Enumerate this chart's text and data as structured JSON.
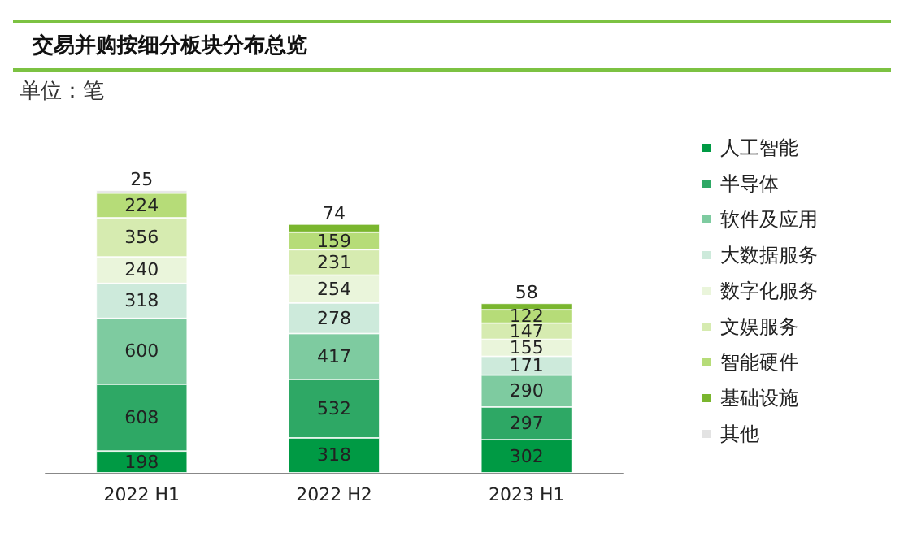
{
  "chart_data": {
    "type": "bar",
    "title": "交易并购按细分板块分布总览",
    "annotations": [
      "单位：笔"
    ],
    "categories": [
      "2022 H1",
      "2022 H2",
      "2023 H1"
    ],
    "stacked": true,
    "data_labels": true,
    "legend": "right",
    "series": [
      {
        "name": "人工智能",
        "color": "#009a44",
        "values": [
          198,
          318,
          302
        ]
      },
      {
        "name": "半导体",
        "color": "#2ea865",
        "values": [
          608,
          532,
          297
        ]
      },
      {
        "name": "软件及应用",
        "color": "#7ecba0",
        "values": [
          600,
          417,
          290
        ]
      },
      {
        "name": "大数据服务",
        "color": "#cdeadb",
        "values": [
          318,
          278,
          171
        ]
      },
      {
        "name": "数字化服务",
        "color": "#eaf5db",
        "values": [
          240,
          254,
          155
        ]
      },
      {
        "name": "文娱服务",
        "color": "#d6ebb0",
        "values": [
          356,
          231,
          147
        ]
      },
      {
        "name": "智能硬件",
        "color": "#b6dc78",
        "values": [
          224,
          159,
          122
        ]
      },
      {
        "name": "基础设施",
        "color": "#7ab62e",
        "values": [
          null,
          74,
          58
        ]
      },
      {
        "name": "其他",
        "color": "#e3e3e3",
        "values": [
          25,
          null,
          null
        ]
      }
    ]
  }
}
